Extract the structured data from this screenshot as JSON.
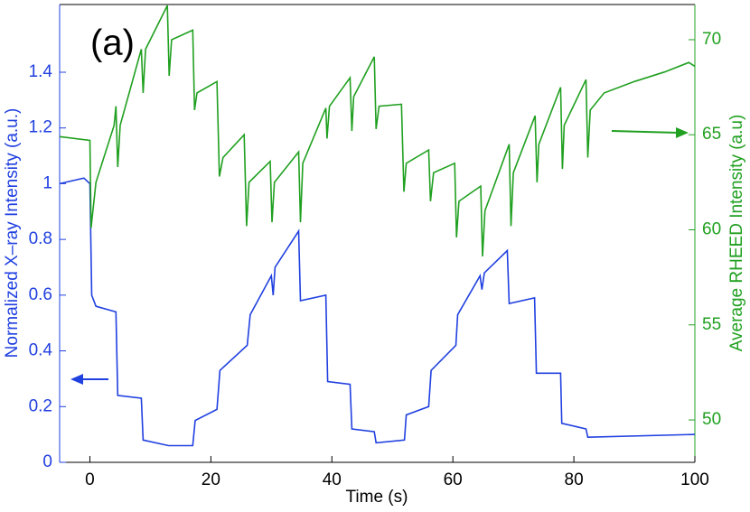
{
  "chart_data": {
    "type": "line",
    "xlabel": "Time (s)",
    "ylabel": "Normalized X–ray Intensity (a.u.)",
    "y2label": "Average RHEED Intensity (a.u)",
    "annotation": "(a)",
    "xlim": [
      -5,
      100
    ],
    "xticks": [
      0,
      20,
      40,
      60,
      80,
      100
    ],
    "ylim": [
      0,
      1.643
    ],
    "yticks": [
      0,
      0.2,
      0.4,
      0.6,
      0.8,
      1,
      1.2,
      1.4
    ],
    "y2lim": [
      47.77,
      71.85
    ],
    "y2ticks": [
      50,
      55,
      60,
      65,
      70
    ],
    "series": [
      {
        "color": "#2040e0",
        "x": [
          -5,
          -1,
          0,
          0.3,
          1,
          4.3,
          4.6,
          8.5,
          8.8,
          13,
          17,
          17.4,
          21,
          21.5,
          26,
          26.5,
          30,
          30.3,
          30.6,
          34.5,
          34.8,
          39,
          39.3,
          43,
          43.3,
          47,
          47.3,
          52,
          52.3,
          56,
          56.4,
          60.5,
          60.8,
          64.5,
          64.8,
          65.2,
          69,
          69.3,
          73.5,
          73.8,
          77.8,
          78,
          82,
          82.3,
          100
        ],
        "values": [
          1.0,
          1.02,
          1.0,
          0.6,
          0.56,
          0.54,
          0.24,
          0.23,
          0.08,
          0.06,
          0.06,
          0.15,
          0.19,
          0.33,
          0.42,
          0.53,
          0.67,
          0.6,
          0.7,
          0.83,
          0.58,
          0.6,
          0.29,
          0.28,
          0.12,
          0.11,
          0.07,
          0.08,
          0.17,
          0.2,
          0.33,
          0.42,
          0.53,
          0.67,
          0.62,
          0.68,
          0.76,
          0.57,
          0.59,
          0.32,
          0.32,
          0.14,
          0.12,
          0.09,
          0.1
        ]
      },
      {
        "color": "#20a020",
        "axis": "y2",
        "x": [
          -5,
          0,
          0.2,
          1,
          4,
          4.3,
          4.6,
          5,
          8.5,
          8.8,
          9.2,
          12.8,
          13.1,
          13.5,
          17,
          17.3,
          17.7,
          21,
          21.4,
          22,
          25.5,
          25.9,
          26.3,
          29.8,
          30.1,
          30.5,
          34.5,
          34.8,
          35.2,
          39,
          39.2,
          39.6,
          43,
          43.3,
          43.6,
          47,
          47.3,
          47.8,
          51.5,
          51.9,
          52.3,
          56,
          56.3,
          56.8,
          60.3,
          60.6,
          61,
          64.6,
          64.9,
          65.3,
          69.3,
          69.6,
          70,
          73.6,
          73.9,
          74.2,
          77.8,
          78.1,
          78.4,
          82,
          82.3,
          82.7,
          85,
          90,
          95,
          99,
          100
        ],
        "values": [
          64.9,
          64.7,
          60.1,
          62.5,
          65.5,
          66.5,
          63.3,
          65.5,
          69.5,
          67.2,
          69.5,
          71.8,
          68.1,
          70,
          70.5,
          66.3,
          67.2,
          67.8,
          62.8,
          63.8,
          65,
          60.2,
          62.5,
          63.6,
          60.4,
          62.5,
          64.1,
          60.4,
          63.5,
          66.4,
          64.8,
          66.5,
          68,
          65.2,
          67,
          69.1,
          65.3,
          66.5,
          66.6,
          62,
          63.5,
          64.2,
          61.5,
          63,
          63.5,
          59.6,
          61.5,
          62.3,
          58.6,
          61,
          64.5,
          60.2,
          63,
          66,
          62.5,
          64.5,
          67.5,
          63.2,
          65.5,
          67.9,
          63.8,
          66.3,
          67.2,
          67.8,
          68.3,
          68.8,
          68.6
        ]
      }
    ]
  }
}
